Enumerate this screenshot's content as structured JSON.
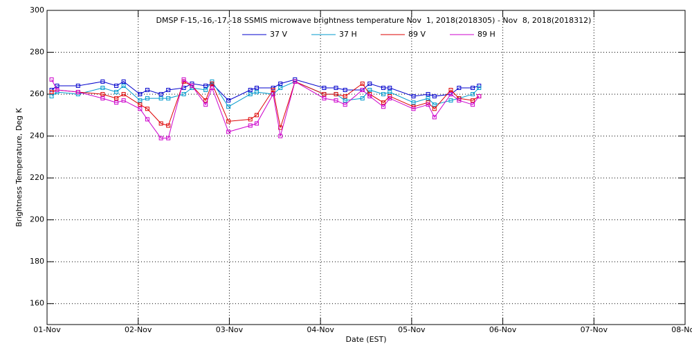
{
  "chart_data": {
    "type": "line",
    "title": "DMSP F-15,-16,-17,-18 SSMIS microwave brightness temperature Nov  1, 2018(2018305) - Nov  8, 2018(2018312)",
    "x_label": "Date (EST)",
    "y_label": "Brightness Temperature, Deg K",
    "x": [
      0.05,
      0.11,
      0.34,
      0.61,
      0.76,
      0.84,
      1.02,
      1.1,
      1.25,
      1.33,
      1.5,
      1.59,
      1.74,
      1.81,
      1.99,
      2.23,
      2.3,
      2.48,
      2.56,
      2.72,
      3.04,
      3.17,
      3.27,
      3.46,
      3.54,
      3.69,
      3.76,
      4.02,
      4.18,
      4.25,
      4.43,
      4.52,
      4.67,
      4.74
    ],
    "series": [
      {
        "name": "37 V",
        "color": "#0000cc",
        "values": [
          262,
          264,
          264,
          266,
          264,
          266,
          260,
          262,
          260,
          262,
          263,
          265,
          264,
          265,
          257,
          262,
          263,
          263,
          265,
          267,
          263,
          263,
          262,
          262,
          265,
          263,
          263,
          259,
          260,
          259,
          260,
          263,
          263,
          264
        ]
      },
      {
        "name": "37 H",
        "color": "#0099cc",
        "values": [
          259,
          261,
          260,
          263,
          261,
          264,
          257,
          258,
          258,
          258,
          260,
          263,
          262,
          266,
          254,
          260,
          261,
          260,
          263,
          266,
          260,
          260,
          257,
          258,
          262,
          260,
          261,
          256,
          258,
          255,
          257,
          258,
          260,
          263
        ]
      },
      {
        "name": "89 V",
        "color": "#dd0000",
        "values": [
          261,
          262,
          261,
          260,
          258,
          260,
          255,
          253,
          246,
          245,
          266,
          264,
          257,
          265,
          247,
          248,
          250,
          262,
          244,
          266,
          260,
          260,
          259,
          265,
          260,
          256,
          259,
          254,
          256,
          253,
          262,
          258,
          257,
          259
        ]
      },
      {
        "name": "89 H",
        "color": "#cc00cc",
        "values": [
          267,
          262,
          261,
          258,
          256,
          257,
          253,
          248,
          239,
          239,
          267,
          264,
          255,
          263,
          242,
          245,
          246,
          260,
          240,
          266,
          258,
          257,
          255,
          262,
          259,
          254,
          258,
          253,
          255,
          249,
          260,
          257,
          255,
          259
        ]
      }
    ],
    "xlim": [
      0,
      7
    ],
    "xticks": [
      {
        "value": 0,
        "label": "01-Nov"
      },
      {
        "value": 1,
        "label": "02-Nov"
      },
      {
        "value": 2,
        "label": "03-Nov"
      },
      {
        "value": 3,
        "label": "04-Nov"
      },
      {
        "value": 4,
        "label": "05-Nov"
      },
      {
        "value": 5,
        "label": "06-Nov"
      },
      {
        "value": 6,
        "label": "07-Nov"
      },
      {
        "value": 7,
        "label": "08-Nov"
      }
    ],
    "ylim": [
      150,
      300
    ],
    "yticks": [
      160,
      180,
      200,
      220,
      240,
      260,
      280,
      300
    ],
    "grid": true
  }
}
